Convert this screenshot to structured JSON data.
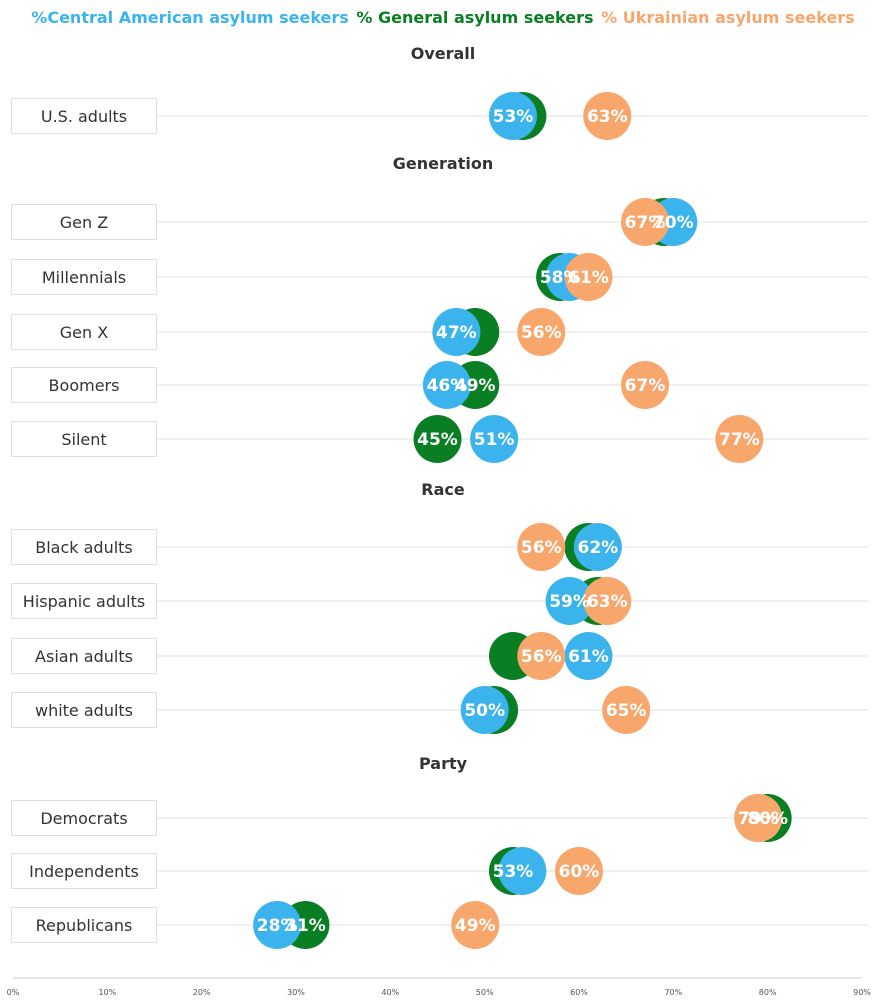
{
  "chart_data": {
    "type": "dot",
    "legend": [
      {
        "series": "central",
        "label": "%Central American asylum seekers",
        "color": "#3bb4ee"
      },
      {
        "series": "general",
        "label": "% General asylum seekers",
        "color": "#0a7e22"
      },
      {
        "series": "ukrainian",
        "label": "% Ukrainian asylum seekers",
        "color": "#f7a66c"
      }
    ],
    "xlim": [
      0,
      90
    ],
    "x_ticks": [
      {
        "value": 0,
        "label": "0%"
      },
      {
        "value": 10,
        "label": "10%"
      },
      {
        "value": 20,
        "label": "20%"
      },
      {
        "value": 30,
        "label": "30%"
      },
      {
        "value": 40,
        "label": "40%"
      },
      {
        "value": 50,
        "label": "50%"
      },
      {
        "value": 60,
        "label": "60%"
      },
      {
        "value": 70,
        "label": "70%"
      },
      {
        "value": 80,
        "label": "80%"
      },
      {
        "value": 90,
        "label": "90%"
      }
    ],
    "sections": [
      {
        "title": "Overall",
        "rows": [
          {
            "label": "U.S. adults",
            "central": 53,
            "general": 54,
            "ukrainian": 63,
            "labels": {
              "central": "53%",
              "general": "",
              "ukrainian": "63%"
            }
          }
        ]
      },
      {
        "title": "Generation",
        "rows": [
          {
            "label": "Gen Z",
            "central": 70,
            "general": 69,
            "ukrainian": 67,
            "labels": {
              "central": "70%",
              "general": "",
              "ukrainian": "67%"
            }
          },
          {
            "label": "Millennials",
            "central": 59,
            "general": 58,
            "ukrainian": 61,
            "labels": {
              "central": "",
              "general": "58%",
              "ukrainian": "61%"
            }
          },
          {
            "label": "Gen X",
            "central": 47,
            "general": 49,
            "ukrainian": 56,
            "labels": {
              "central": "47%",
              "general": "",
              "ukrainian": "56%"
            }
          },
          {
            "label": "Boomers",
            "central": 46,
            "general": 49,
            "ukrainian": 67,
            "labels": {
              "central": "46%",
              "general": "49%",
              "ukrainian": "67%"
            }
          },
          {
            "label": "Silent",
            "central": 51,
            "general": 45,
            "ukrainian": 77,
            "labels": {
              "central": "51%",
              "general": "45%",
              "ukrainian": "77%"
            }
          }
        ]
      },
      {
        "title": "Race",
        "rows": [
          {
            "label": "Black adults",
            "central": 62,
            "general": 61,
            "ukrainian": 56,
            "labels": {
              "central": "62%",
              "general": "",
              "ukrainian": "56%"
            }
          },
          {
            "label": "Hispanic adults",
            "central": 59,
            "general": 62,
            "ukrainian": 63,
            "labels": {
              "central": "59%",
              "general": "",
              "ukrainian": "63%"
            }
          },
          {
            "label": "Asian adults",
            "central": 61,
            "general": 53,
            "ukrainian": 56,
            "labels": {
              "central": "61%",
              "general": "",
              "ukrainian": "56%"
            }
          },
          {
            "label": "white adults",
            "central": 50,
            "general": 51,
            "ukrainian": 65,
            "labels": {
              "central": "50%",
              "general": "",
              "ukrainian": "65%"
            }
          }
        ]
      },
      {
        "title": "Party",
        "rows": [
          {
            "label": "Democrats",
            "central": 79,
            "general": 80,
            "ukrainian": 79,
            "labels": {
              "central": "",
              "general": "80%",
              "ukrainian": "79%"
            }
          },
          {
            "label": "Independents",
            "central": 54,
            "general": 53,
            "ukrainian": 60,
            "labels": {
              "central": "",
              "general": "53%",
              "ukrainian": "60%"
            }
          },
          {
            "label": "Republicans",
            "central": 28,
            "general": 31,
            "ukrainian": 49,
            "labels": {
              "central": "28%",
              "general": "31%",
              "ukrainian": "49%"
            }
          }
        ]
      }
    ]
  }
}
